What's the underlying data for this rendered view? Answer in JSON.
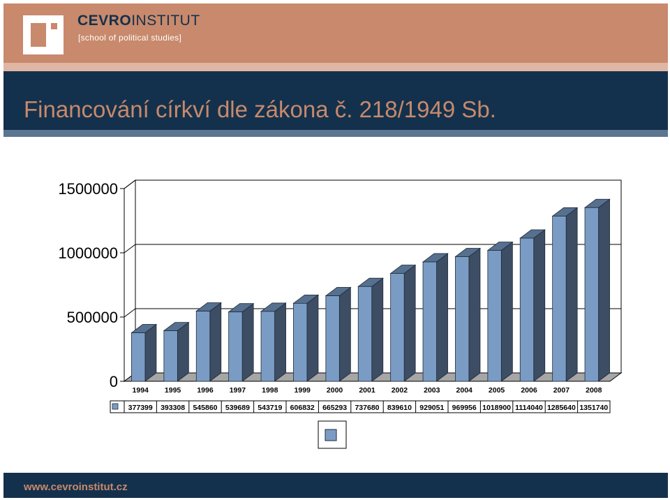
{
  "header": {
    "logo_name_bold": "CEVRO",
    "logo_name_regular": "INSTITUT",
    "logo_subtitle": "[school of political studies]",
    "brand_color": "#c8896c",
    "navy_color": "#13314c"
  },
  "slide": {
    "title": "Financování církví dle zákona č. 218/1949 Sb."
  },
  "footer": {
    "url": "www.cevroinstitut.cz"
  },
  "chart_data": {
    "type": "bar",
    "style": "3d-columns",
    "categories": [
      "1994",
      "1995",
      "1996",
      "1997",
      "1998",
      "1999",
      "2000",
      "2001",
      "2002",
      "2003",
      "2004",
      "2005",
      "2006",
      "2007",
      "2008"
    ],
    "series": [
      {
        "name": "",
        "values": [
          377399,
          393308,
          545860,
          539689,
          543719,
          606832,
          665293,
          737680,
          839610,
          929051,
          969956,
          1018900,
          1114040,
          1285640,
          1351740
        ],
        "color": "#7a9cc4"
      }
    ],
    "value_labels": [
      "377399",
      "393308",
      "545860",
      "539689",
      "543719",
      "606832",
      "665293",
      "737680",
      "839610",
      "929051",
      "969956",
      "1018900",
      "1114040",
      "1285640",
      "1351740"
    ],
    "y_ticks": [
      "0",
      "500000",
      "1000000",
      "1500000"
    ],
    "ylim": [
      0,
      1500000
    ],
    "grid": true,
    "legend": "bottom",
    "data_table": true,
    "title": "",
    "xlabel": "",
    "ylabel": ""
  }
}
